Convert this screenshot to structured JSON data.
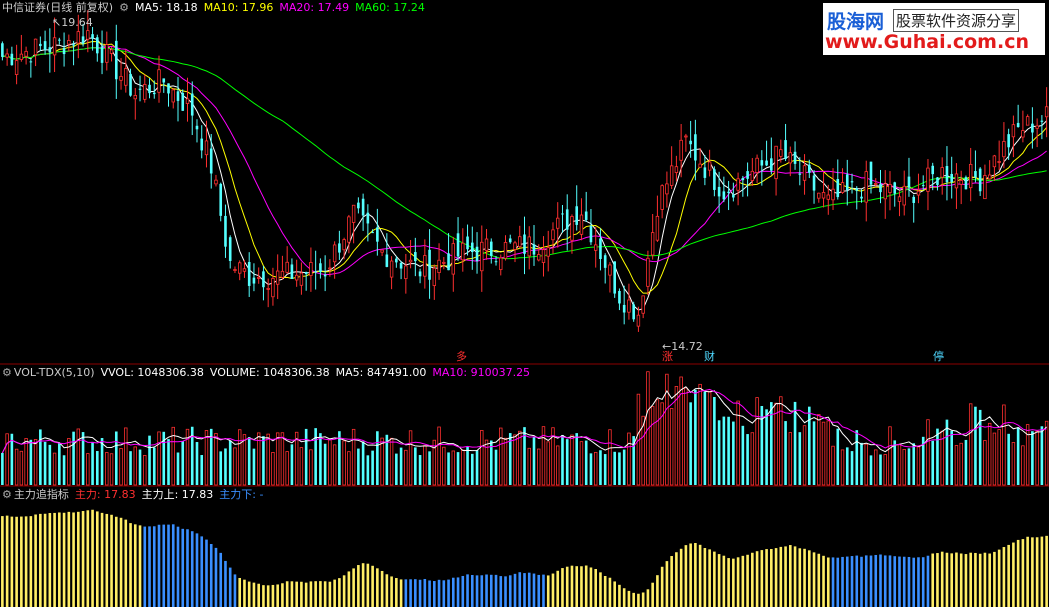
{
  "price_panel": {
    "stock_name": "中信证券(日线 前复权)",
    "ma_labels": [
      {
        "text": "MA5: 18.18",
        "color": "#ffffff"
      },
      {
        "text": "MA10: 17.96",
        "color": "#ffff00"
      },
      {
        "text": "MA20: 17.49",
        "color": "#ff00ff"
      },
      {
        "text": "MA60: 17.24",
        "color": "#00ff00"
      }
    ],
    "high_label": "19.64",
    "low_label": "14.72",
    "markers": [
      {
        "text": "多",
        "color": "#ff3030"
      },
      {
        "text": "涨",
        "color": "#ff3030"
      },
      {
        "text": "财",
        "color": "#4fd8ff"
      },
      {
        "text": "停",
        "color": "#4fd8ff"
      }
    ]
  },
  "volume_panel": {
    "labels": [
      {
        "text": "VOL-TDX(5,10)",
        "color": "#cccccc"
      },
      {
        "text": "VVOL: 1048306.38",
        "color": "#ffffff"
      },
      {
        "text": "VOLUME: 1048306.38",
        "color": "#ffffff"
      },
      {
        "text": "MA5: 847491.00",
        "color": "#ffffff"
      },
      {
        "text": "MA10: 910037.25",
        "color": "#ff00ff"
      }
    ]
  },
  "indicator_panel": {
    "labels": [
      {
        "text": "主力追指标",
        "color": "#cccccc"
      },
      {
        "text": "主力: 17.83",
        "color": "#ff3030"
      },
      {
        "text": "主力上: 17.83",
        "color": "#ffffff"
      },
      {
        "text": "主力下: -",
        "color": "#3a8fff"
      }
    ]
  },
  "watermark": {
    "line1": "股海网",
    "line1b": "股票软件资源分享",
    "line2": "www.Guhai.com.cn"
  },
  "colors": {
    "up": "#ff3030",
    "down": "#54ffff",
    "ma5": "#ffffff",
    "ma10": "#ffff00",
    "ma20": "#ff00ff",
    "ma60": "#00ff00",
    "zhuli_up": "#ffee66",
    "zhuli_down": "#3a8fff",
    "separator": "#8b0000"
  },
  "chart_data": {
    "type": "candlestick",
    "price_anchors": {
      "first_close": 19.2,
      "points": [
        [
          0,
          19.2
        ],
        [
          12,
          19.4
        ],
        [
          18,
          19.6
        ],
        [
          28,
          18.6
        ],
        [
          34,
          18.8
        ],
        [
          40,
          18.3
        ],
        [
          44,
          17.4
        ],
        [
          48,
          15.8
        ],
        [
          52,
          15.6
        ],
        [
          58,
          15.6
        ],
        [
          68,
          15.7
        ],
        [
          74,
          16.6
        ],
        [
          80,
          16.0
        ],
        [
          88,
          15.7
        ],
        [
          98,
          16.0
        ],
        [
          112,
          16.1
        ],
        [
          122,
          16.7
        ],
        [
          130,
          15.3
        ],
        [
          134,
          15.0
        ],
        [
          138,
          16.8
        ],
        [
          144,
          17.8
        ],
        [
          152,
          17.0
        ],
        [
          164,
          17.6
        ],
        [
          174,
          16.8
        ],
        [
          182,
          17.1
        ],
        [
          190,
          16.9
        ],
        [
          198,
          17.3
        ],
        [
          206,
          17.2
        ],
        [
          214,
          18.0
        ],
        [
          220,
          18.2
        ]
      ],
      "days": 221,
      "seed": 7
    },
    "indicator_split": [
      [
        0,
        1,
        30
      ],
      [
        30,
        0,
        50
      ],
      [
        50,
        1,
        85
      ],
      [
        85,
        0,
        115
      ],
      [
        115,
        1,
        175
      ],
      [
        175,
        0,
        196
      ],
      [
        196,
        1,
        221
      ]
    ]
  }
}
